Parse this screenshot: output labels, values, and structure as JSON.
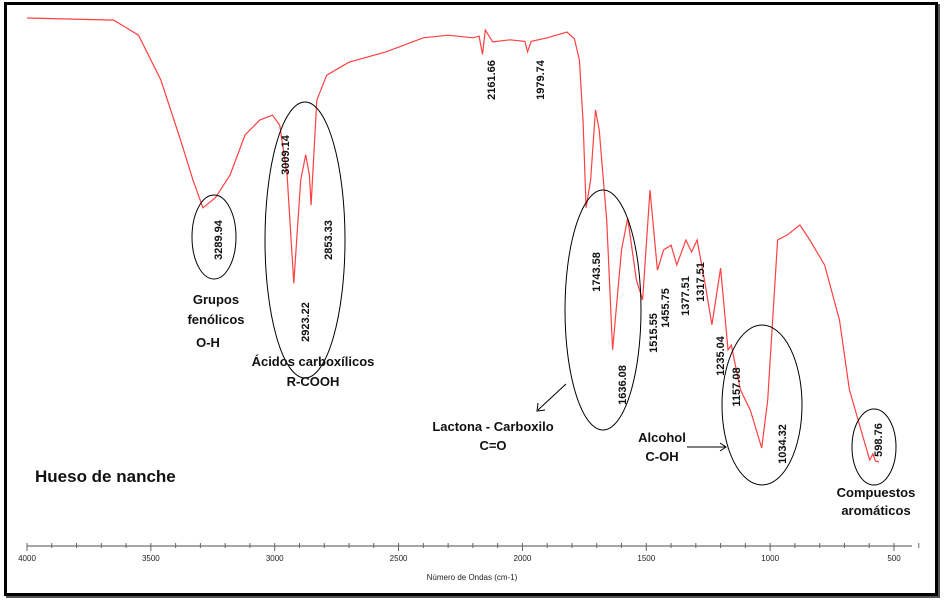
{
  "chart_data": {
    "type": "line",
    "title": "Hueso de nanche",
    "xlabel": "Número de Ondas (cm-1)",
    "ylabel": "",
    "xlim": [
      4000,
      500
    ],
    "ylim": [
      0,
      100
    ],
    "xticks": [
      "4000",
      "3500",
      "3000",
      "2500",
      "2000",
      "1500",
      "1000",
      "500"
    ],
    "series": [
      {
        "name": "Hueso de nanche",
        "color": "#ff4040",
        "points": [
          [
            4000,
            100
          ],
          [
            3650,
            99.6
          ],
          [
            3550,
            96.7
          ],
          [
            3460,
            88.1
          ],
          [
            3380,
            76.5
          ],
          [
            3330,
            68.8
          ],
          [
            3290,
            63.5
          ],
          [
            3240,
            65.4
          ],
          [
            3180,
            69.8
          ],
          [
            3120,
            77.5
          ],
          [
            3060,
            80.4
          ],
          [
            3009,
            81.3
          ],
          [
            2980,
            79.4
          ],
          [
            2950,
            69.8
          ],
          [
            2923,
            49.0
          ],
          [
            2895,
            68.8
          ],
          [
            2875,
            73.7
          ],
          [
            2860,
            69.8
          ],
          [
            2853,
            64.0
          ],
          [
            2830,
            84.2
          ],
          [
            2790,
            89.0
          ],
          [
            2700,
            91.5
          ],
          [
            2550,
            93.5
          ],
          [
            2400,
            96.2
          ],
          [
            2300,
            96.7
          ],
          [
            2200,
            96.2
          ],
          [
            2175,
            96.5
          ],
          [
            2161,
            93.0
          ],
          [
            2150,
            97.7
          ],
          [
            2120,
            95.4
          ],
          [
            2050,
            95.8
          ],
          [
            1990,
            95.5
          ],
          [
            1979,
            93.5
          ],
          [
            1965,
            95.5
          ],
          [
            1900,
            96.2
          ],
          [
            1820,
            97.3
          ],
          [
            1790,
            96.0
          ],
          [
            1770,
            91.9
          ],
          [
            1755,
            80
          ],
          [
            1743,
            63.5
          ],
          [
            1725,
            68.8
          ],
          [
            1705,
            82.3
          ],
          [
            1690,
            78.5
          ],
          [
            1660,
            61.2
          ],
          [
            1636,
            36.2
          ],
          [
            1600,
            55.4
          ],
          [
            1575,
            61.5
          ],
          [
            1540,
            49.6
          ],
          [
            1515,
            45.8
          ],
          [
            1485,
            66.9
          ],
          [
            1455,
            51.5
          ],
          [
            1430,
            55.4
          ],
          [
            1400,
            56.3
          ],
          [
            1377,
            52.5
          ],
          [
            1340,
            57.3
          ],
          [
            1317,
            55.0
          ],
          [
            1295,
            57.3
          ],
          [
            1265,
            49.6
          ],
          [
            1235,
            41.0
          ],
          [
            1200,
            51.9
          ],
          [
            1170,
            36.2
          ],
          [
            1157,
            37.1
          ],
          [
            1120,
            28.5
          ],
          [
            1080,
            24.6
          ],
          [
            1034,
            17.3
          ],
          [
            1010,
            26.5
          ],
          [
            970,
            57.3
          ],
          [
            930,
            58.3
          ],
          [
            880,
            60.2
          ],
          [
            840,
            57.3
          ],
          [
            780,
            52.5
          ],
          [
            720,
            41.9
          ],
          [
            680,
            28.5
          ],
          [
            598,
            15.0
          ],
          [
            585,
            16.2
          ],
          [
            575,
            14.8
          ],
          [
            560,
            14.6
          ]
        ]
      }
    ],
    "peak_labels": [
      "3289.94",
      "3009.14",
      "2923.22",
      "2853.33",
      "2161.66",
      "1979.74",
      "1743.58",
      "1636.08",
      "1515.55",
      "1455.75",
      "1377.51",
      "1317.51",
      "1235.04",
      "1157.08",
      "1034.32",
      "598.76"
    ],
    "annotations": {
      "fenolicos": [
        "Grupos",
        "fenólicos",
        "O-H"
      ],
      "acidos": [
        "Ácidos carboxílicos",
        "R-COOH"
      ],
      "lactona": [
        "Lactona - Carboxilo",
        "C=O"
      ],
      "alcohol": [
        "Alcohol",
        "C-OH"
      ],
      "aromaticos": [
        "Compuestos",
        "aromáticos"
      ]
    },
    "grid": false
  }
}
